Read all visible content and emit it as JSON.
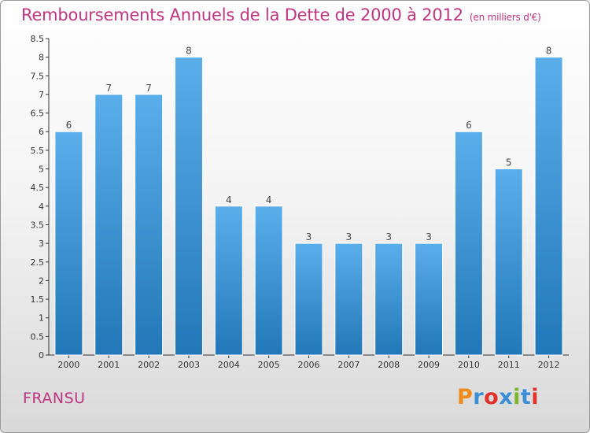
{
  "header": {
    "title": "Remboursements Annuels de la Dette de 2000 à 2012",
    "unit": "(en milliers d'€)"
  },
  "footer": {
    "town": "FRANSU",
    "logo": "Proxiti",
    "logo_colors": [
      "#f08c1a",
      "#3a8fd6",
      "#e0312a",
      "#3a8fd6",
      "#7ab828",
      "#3a8fd6",
      "#e0312a"
    ]
  },
  "colors": {
    "title": "#c0357f",
    "bar_light": "#5aaeea",
    "bar_dark": "#2277b8",
    "axis": "#333333"
  },
  "chart_data": {
    "type": "bar",
    "categories": [
      "2000",
      "2001",
      "2002",
      "2003",
      "2004",
      "2005",
      "2006",
      "2007",
      "2008",
      "2009",
      "2010",
      "2011",
      "2012"
    ],
    "values": [
      6,
      7,
      7,
      8,
      4,
      4,
      3,
      3,
      3,
      3,
      6,
      5,
      8
    ],
    "data_labels": [
      "6",
      "7",
      "7",
      "8",
      "4",
      "4",
      "3",
      "3",
      "3",
      "3",
      "6",
      "5",
      "8"
    ],
    "yticks": [
      "0",
      "0.5",
      "1",
      "1.5",
      "2",
      "2.5",
      "3",
      "3.5",
      "4",
      "4.5",
      "5",
      "5.5",
      "6",
      "6.5",
      "7",
      "7.5",
      "8",
      "8.5"
    ],
    "ylim": [
      0,
      8.5
    ],
    "grid": false,
    "legend": "none"
  }
}
